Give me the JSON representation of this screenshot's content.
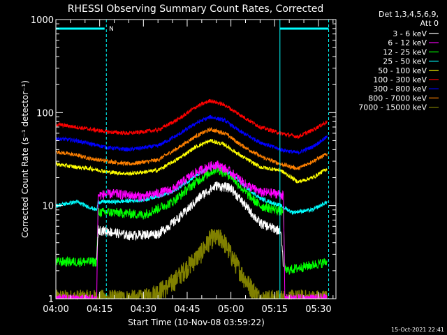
{
  "chart_data": {
    "type": "line",
    "title": "RHESSI Observing Summary Count Rates, Corrected",
    "xlabel": "Start Time (10-Nov-08 03:59:22)",
    "ylabel": "Corrected Count Rate (s⁻¹ detector⁻¹)",
    "yscale": "log",
    "ylim": [
      1,
      1000
    ],
    "xlim": [
      "04:00",
      "05:36"
    ],
    "x_unit": "minutes after 04:00",
    "x_ticks": [
      {
        "t": 0,
        "label": "04:00"
      },
      {
        "t": 15,
        "label": "04:15"
      },
      {
        "t": 30,
        "label": "04:30"
      },
      {
        "t": 45,
        "label": "04:45"
      },
      {
        "t": 60,
        "label": "05:00"
      },
      {
        "t": 75,
        "label": "05:15"
      },
      {
        "t": 90,
        "label": "05:30"
      }
    ],
    "y_ticks": [
      {
        "v": 1,
        "label": "1"
      },
      {
        "v": 10,
        "label": "10"
      },
      {
        "v": 100,
        "label": "100"
      },
      {
        "v": 1000,
        "label": "1000"
      }
    ],
    "legend": {
      "position": "top-right",
      "header": [
        "Det 1,3,4,5,6,9,",
        "Att 0"
      ]
    },
    "footer_timestamp": "15-Oct-2021 22:41",
    "flags": [
      {
        "name": "SAA/night bar",
        "color": "#00ffff",
        "segments": [
          [
            0,
            16.7
          ],
          [
            76.8,
            93.5
          ]
        ]
      },
      {
        "label": "N",
        "t": 17.5,
        "color": "#00ffff"
      }
    ],
    "vertical_markers": [
      {
        "t": 0,
        "style": "solid",
        "color": "#00ffff"
      },
      {
        "t": 17.3,
        "style": "dashed",
        "color": "#00ffff"
      },
      {
        "t": 76.8,
        "style": "solid",
        "color": "#00ffff"
      },
      {
        "t": 93.5,
        "style": "dashed",
        "color": "#00ffff"
      }
    ],
    "series": [
      {
        "name": "3 - 6 keV",
        "color": "#ffffff",
        "points": [
          [
            14,
            2.5
          ],
          [
            14.5,
            5.5
          ],
          [
            18,
            5.3
          ],
          [
            25,
            4.8
          ],
          [
            35,
            5
          ],
          [
            40,
            6.5
          ],
          [
            45,
            9
          ],
          [
            50,
            13
          ],
          [
            55,
            16.5
          ],
          [
            60,
            15.5
          ],
          [
            65,
            10
          ],
          [
            70,
            6.5
          ],
          [
            76,
            5.5
          ],
          [
            77,
            5.5
          ],
          [
            78,
            2.3
          ]
        ]
      },
      {
        "name": "6 - 12 keV",
        "color": "#ff00ff",
        "points": [
          [
            0,
            1
          ],
          [
            14,
            1
          ],
          [
            14.5,
            13
          ],
          [
            20,
            13.5
          ],
          [
            30,
            12.5
          ],
          [
            40,
            15
          ],
          [
            47,
            22
          ],
          [
            52,
            26
          ],
          [
            55,
            28
          ],
          [
            60,
            23
          ],
          [
            65,
            17
          ],
          [
            70,
            14
          ],
          [
            76,
            13.5
          ],
          [
            78,
            13
          ],
          [
            78.5,
            1
          ],
          [
            93,
            1
          ]
        ]
      },
      {
        "name": "12 - 25 keV",
        "color": "#00ff00",
        "points": [
          [
            0,
            2.5
          ],
          [
            14,
            2.5
          ],
          [
            14.5,
            8.5
          ],
          [
            20,
            8.5
          ],
          [
            30,
            8
          ],
          [
            40,
            11
          ],
          [
            47,
            17
          ],
          [
            52,
            22
          ],
          [
            55,
            25
          ],
          [
            60,
            21
          ],
          [
            65,
            14
          ],
          [
            70,
            10
          ],
          [
            76,
            9
          ],
          [
            78,
            8.5
          ],
          [
            78.5,
            2
          ],
          [
            93,
            2.5
          ]
        ]
      },
      {
        "name": "25 - 50 keV",
        "color": "#00ffff",
        "points": [
          [
            0,
            10
          ],
          [
            7,
            11
          ],
          [
            12,
            9.5
          ],
          [
            14,
            9
          ],
          [
            14.5,
            11
          ],
          [
            20,
            11
          ],
          [
            30,
            11.5
          ],
          [
            40,
            14
          ],
          [
            47,
            20
          ],
          [
            52,
            25
          ],
          [
            55,
            27
          ],
          [
            60,
            22
          ],
          [
            65,
            16
          ],
          [
            70,
            12
          ],
          [
            77,
            10
          ],
          [
            81,
            8.5
          ],
          [
            88,
            9
          ],
          [
            93,
            11
          ]
        ]
      },
      {
        "name": "50 - 100 keV",
        "color": "#ffff00",
        "points": [
          [
            0,
            28
          ],
          [
            7,
            26
          ],
          [
            12,
            25
          ],
          [
            18,
            23
          ],
          [
            25,
            22
          ],
          [
            35,
            24
          ],
          [
            42,
            32
          ],
          [
            48,
            43
          ],
          [
            53,
            50
          ],
          [
            58,
            45
          ],
          [
            63,
            35
          ],
          [
            70,
            26
          ],
          [
            77,
            24
          ],
          [
            83,
            18
          ],
          [
            88,
            20
          ],
          [
            93,
            25
          ]
        ]
      },
      {
        "name": "100 - 300 keV",
        "color": "#ff0000",
        "points": [
          [
            0,
            75
          ],
          [
            7,
            70
          ],
          [
            12,
            66
          ],
          [
            18,
            62
          ],
          [
            25,
            60
          ],
          [
            35,
            65
          ],
          [
            42,
            85
          ],
          [
            48,
            115
          ],
          [
            53,
            135
          ],
          [
            58,
            120
          ],
          [
            63,
            95
          ],
          [
            70,
            70
          ],
          [
            77,
            60
          ],
          [
            83,
            55
          ],
          [
            88,
            65
          ],
          [
            93,
            80
          ]
        ]
      },
      {
        "name": "300 - 800 keV",
        "color": "#0000ff",
        "points": [
          [
            0,
            53
          ],
          [
            7,
            50
          ],
          [
            12,
            46
          ],
          [
            18,
            42
          ],
          [
            25,
            40
          ],
          [
            35,
            44
          ],
          [
            42,
            58
          ],
          [
            48,
            77
          ],
          [
            53,
            90
          ],
          [
            58,
            82
          ],
          [
            63,
            63
          ],
          [
            70,
            48
          ],
          [
            77,
            40
          ],
          [
            83,
            37
          ],
          [
            88,
            43
          ],
          [
            93,
            55
          ]
        ]
      },
      {
        "name": "800 - 7000 keV",
        "color": "#ff8000",
        "points": [
          [
            0,
            38
          ],
          [
            7,
            35
          ],
          [
            12,
            32
          ],
          [
            18,
            30
          ],
          [
            25,
            28
          ],
          [
            35,
            31
          ],
          [
            42,
            42
          ],
          [
            48,
            56
          ],
          [
            53,
            66
          ],
          [
            58,
            60
          ],
          [
            63,
            46
          ],
          [
            70,
            34
          ],
          [
            77,
            28
          ],
          [
            83,
            25
          ],
          [
            88,
            30
          ],
          [
            93,
            36
          ]
        ]
      },
      {
        "name": "7000 - 15000 keV",
        "color": "#808000",
        "points": [
          [
            0,
            1
          ],
          [
            30,
            1
          ],
          [
            39,
            1.4
          ],
          [
            45,
            2.2
          ],
          [
            50,
            3.2
          ],
          [
            53,
            4.5
          ],
          [
            57,
            4.5
          ],
          [
            60,
            3
          ],
          [
            65,
            1.6
          ],
          [
            70,
            1
          ],
          [
            93,
            1
          ]
        ]
      }
    ]
  }
}
